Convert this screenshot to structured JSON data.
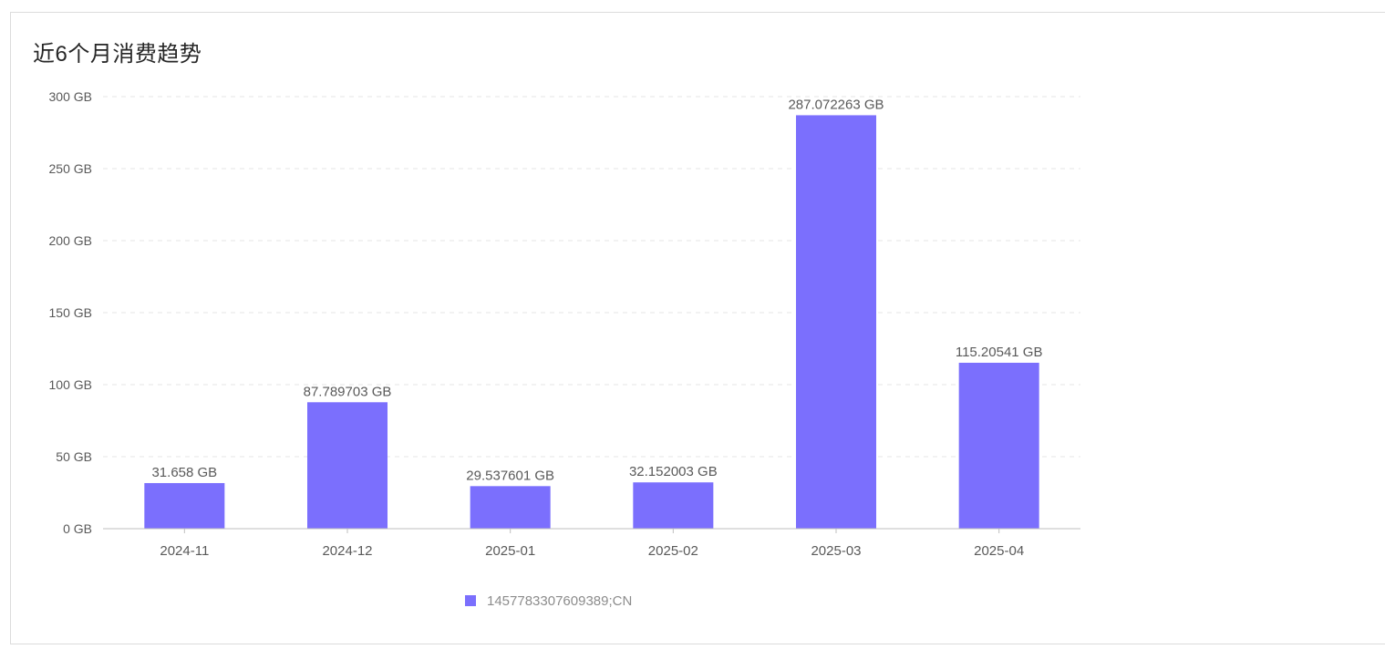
{
  "card": {
    "title": "近6个月消费趋势"
  },
  "chart_data": {
    "type": "bar",
    "title": "近6个月消费趋势",
    "categories": [
      "2024-11",
      "2024-12",
      "2025-01",
      "2025-02",
      "2025-03",
      "2025-04"
    ],
    "series": [
      {
        "name": "1457783307609389;CN",
        "values": [
          31.658,
          87.789703,
          29.537601,
          32.152003,
          287.072263,
          115.20541
        ],
        "labels": [
          "31.658 GB",
          "87.789703 GB",
          "29.537601 GB",
          "32.152003 GB",
          "287.072263 GB",
          "115.20541 GB"
        ]
      }
    ],
    "ylim": [
      0,
      300
    ],
    "yticks": [
      0,
      50,
      100,
      150,
      200,
      250,
      300
    ],
    "ytick_labels": [
      "0 GB",
      "50 GB",
      "100 GB",
      "150 GB",
      "200 GB",
      "250 GB",
      "300 GB"
    ],
    "xlabel": "",
    "ylabel": "",
    "grid": true,
    "legend_position": "bottom"
  },
  "colors": {
    "bar": "#7b6ffd",
    "grid": "#e6e6e6",
    "axis": "#bfbfbf"
  }
}
